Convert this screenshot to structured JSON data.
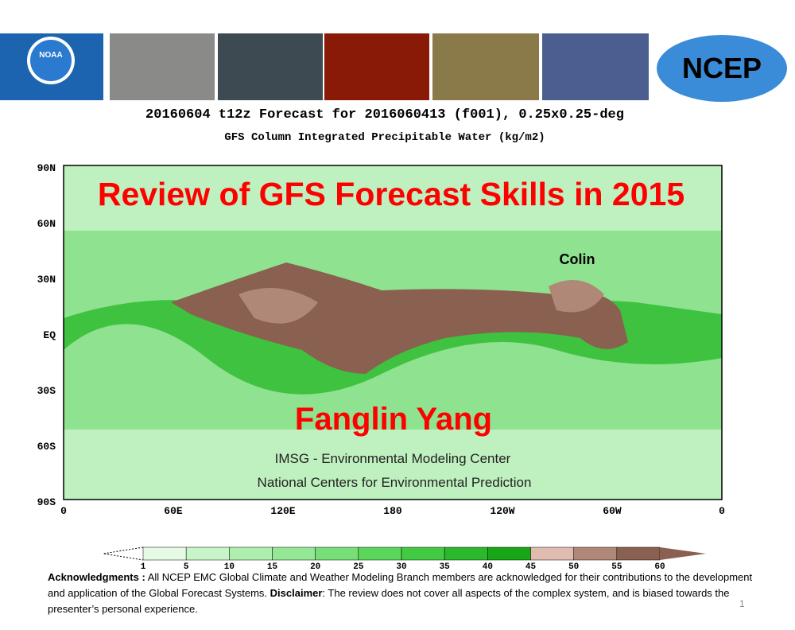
{
  "banner": {
    "left_logo": "NOAA",
    "right_logo": "NCEP"
  },
  "forecast": {
    "line1": "20160604 t12z Forecast for 2016060413 (f001), 0.25x0.25-deg",
    "line2": "GFS Column Integrated Precipitable Water (kg/m2)"
  },
  "map": {
    "lat_labels": [
      "90N",
      "60N",
      "30N",
      "EQ",
      "30S",
      "60S",
      "90S"
    ],
    "lon_labels": [
      "0",
      "60E",
      "120E",
      "180",
      "120W",
      "60W",
      "0"
    ],
    "storm_label": "Colin"
  },
  "overlay": {
    "title": "Review of GFS Forecast Skills in 2015",
    "author": "Fanglin Yang",
    "affiliation1": "IMSG - Environmental Modeling Center",
    "affiliation2": "National Centers for Environmental Prediction"
  },
  "colorbar": {
    "ticks": [
      1,
      5,
      10,
      15,
      20,
      25,
      30,
      35,
      40,
      45,
      50,
      55,
      60
    ],
    "colors": [
      "#e6fbe6",
      "#c8f5c8",
      "#aeefae",
      "#94e794",
      "#78de78",
      "#5ad65a",
      "#42ca42",
      "#2cb82c",
      "#16a616",
      "#e0bcb0",
      "#b08878",
      "#8a6050"
    ]
  },
  "acknowledgments": {
    "label1": "Acknowledgments :",
    "text1": " All NCEP EMC Global Climate and Weather Modeling Branch members are acknowledged for their contributions to the development and application of the Global Forecast Systems.  ",
    "label2": "Disclaimer",
    "text2": ": The review does not cover all aspects of the complex system, and is biased towards the presenter’s personal experience."
  },
  "page_number": "1"
}
